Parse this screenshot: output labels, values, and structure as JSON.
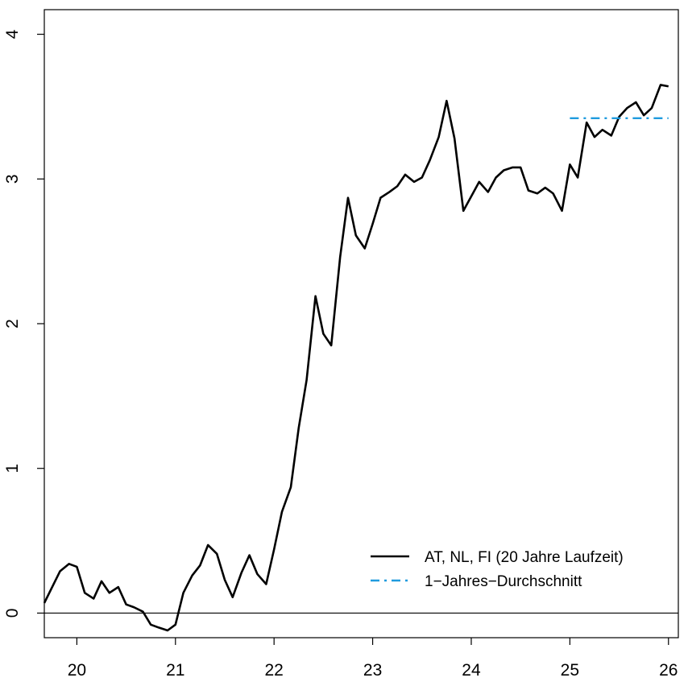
{
  "chart_data": {
    "type": "line",
    "title": "",
    "xlabel": "",
    "ylabel": "",
    "xlim": [
      19.67,
      26.1
    ],
    "ylim": [
      -0.17,
      4.17
    ],
    "x_ticks": [
      20,
      21,
      22,
      23,
      24,
      25,
      26
    ],
    "x_tick_labels": [
      "20",
      "21",
      "22",
      "23",
      "24",
      "25",
      "26"
    ],
    "y_ticks": [
      0,
      1,
      2,
      3,
      4
    ],
    "y_tick_labels": [
      "0",
      "1",
      "2",
      "3",
      "4"
    ],
    "reference_line_y": 0,
    "grid": false,
    "legend_position": "bottom-right",
    "series": [
      {
        "name": "AT, NL, FI (20 Jahre Laufzeit)",
        "color": "#000000",
        "style": "solid",
        "x": [
          19.67,
          19.75,
          19.83,
          19.92,
          20.0,
          20.08,
          20.17,
          20.25,
          20.33,
          20.42,
          20.5,
          20.58,
          20.67,
          20.75,
          20.83,
          20.92,
          21.0,
          21.08,
          21.17,
          21.25,
          21.33,
          21.42,
          21.5,
          21.58,
          21.67,
          21.75,
          21.83,
          21.92,
          22.0,
          22.08,
          22.17,
          22.25,
          22.33,
          22.42,
          22.5,
          22.58,
          22.67,
          22.75,
          22.83,
          22.92,
          23.0,
          23.08,
          23.17,
          23.25,
          23.33,
          23.42,
          23.5,
          23.58,
          23.67,
          23.75,
          23.83,
          23.92,
          24.0,
          24.08,
          24.17,
          24.25,
          24.33,
          24.42,
          24.5,
          24.58,
          24.67,
          24.75,
          24.83,
          24.92,
          25.0,
          25.08,
          25.17,
          25.25,
          25.33,
          25.42,
          25.5,
          25.58,
          25.67,
          25.75,
          25.83,
          25.92,
          26.0
        ],
        "y": [
          0.07,
          0.18,
          0.29,
          0.34,
          0.32,
          0.14,
          0.1,
          0.22,
          0.14,
          0.18,
          0.06,
          0.04,
          0.01,
          -0.08,
          -0.1,
          -0.12,
          -0.08,
          0.14,
          0.26,
          0.33,
          0.47,
          0.41,
          0.23,
          0.11,
          0.28,
          0.4,
          0.27,
          0.2,
          0.44,
          0.7,
          0.87,
          1.28,
          1.61,
          2.19,
          1.93,
          1.85,
          2.46,
          2.87,
          2.61,
          2.52,
          2.69,
          2.87,
          2.91,
          2.95,
          3.03,
          2.98,
          3.01,
          3.13,
          3.29,
          3.54,
          3.28,
          2.78,
          2.88,
          2.98,
          2.91,
          3.01,
          3.06,
          3.08,
          3.08,
          2.92,
          2.9,
          2.94,
          2.9,
          2.78,
          3.1,
          3.01,
          3.39,
          3.29,
          3.34,
          3.3,
          3.43,
          3.49,
          3.53,
          3.44,
          3.49,
          3.65,
          3.64
        ]
      },
      {
        "name": "1−Jahres−Durchschnitt",
        "color": "#1f9bde",
        "style": "dashdot",
        "x": [
          25.0,
          26.0
        ],
        "y": [
          3.42,
          3.42
        ]
      }
    ]
  }
}
